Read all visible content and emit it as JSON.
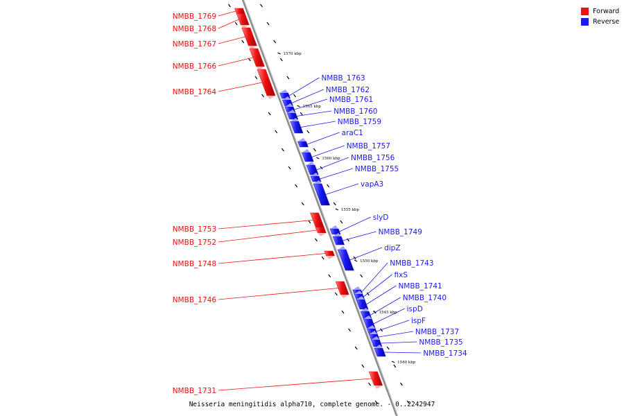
{
  "colors": {
    "forward": "#ee1111",
    "reverse": "#1a1aee",
    "axis": "#8a8a8a"
  },
  "legend": [
    {
      "label": "Forward",
      "color": "#ee1111"
    },
    {
      "label": "Reverse",
      "color": "#1a1aee"
    }
  ],
  "caption": "Neisseria meningitidis alpha710, complete genome. - 0..2242947",
  "ticks": [
    "1570 kbp",
    "1565 kbp",
    "1560 kbp",
    "1555 kbp",
    "1550 kbp",
    "1545 kbp",
    "1540 kbp"
  ],
  "forward_genes": [
    "NMBB_1769",
    "NMBB_1768",
    "NMBB_1767",
    "NMBB_1766",
    "NMBB_1764",
    "NMBB_1753",
    "NMBB_1752",
    "NMBB_1748",
    "NMBB_1746",
    "NMBB_1731"
  ],
  "reverse_genes": [
    "NMBB_1763",
    "NMBB_1762",
    "NMBB_1761",
    "NMBB_1760",
    "NMBB_1759",
    "araC1",
    "NMBB_1757",
    "NMBB_1756",
    "NMBB_1755",
    "vapA3",
    "slyD",
    "NMBB_1749",
    "dipZ",
    "NMBB_1743",
    "fixS",
    "NMBB_1741",
    "NMBB_1740",
    "ispD",
    "ispF",
    "NMBB_1737",
    "NMBB_1735",
    "NMBB_1734"
  ]
}
